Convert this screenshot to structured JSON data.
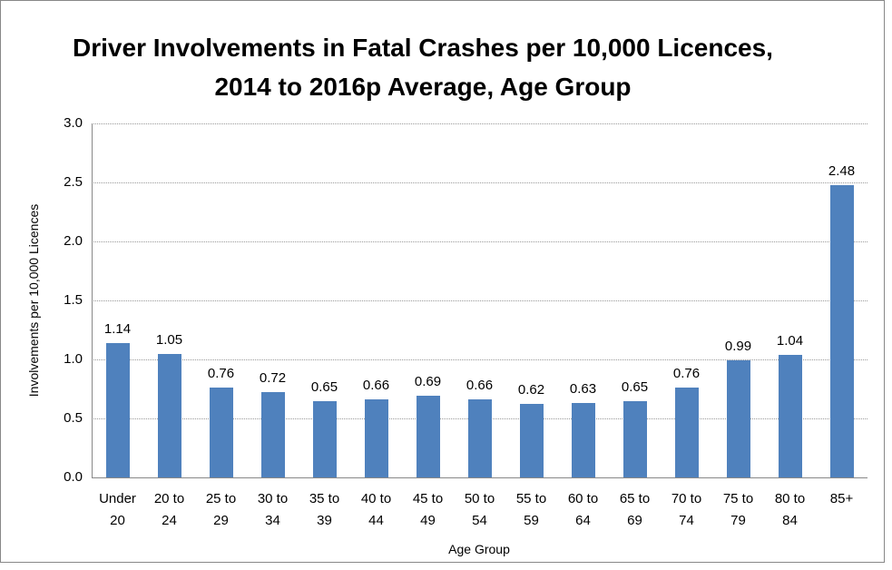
{
  "chart_data": {
    "type": "bar",
    "title": "Driver Involvements in Fatal Crashes per 10,000 Licences, 2014 to 2016p Average, Age Group",
    "x_label": "Age Group",
    "y_label": "Involvements per 10,000 Licences",
    "categories": [
      "Under 20",
      "20 to 24",
      "25 to 29",
      "30 to 34",
      "35 to 39",
      "40 to 44",
      "45 to 49",
      "50 to 54",
      "55 to 59",
      "60 to 64",
      "65 to 69",
      "70 to 74",
      "75 to 79",
      "80 to 84",
      "85+"
    ],
    "values": [
      1.14,
      1.05,
      0.76,
      0.72,
      0.65,
      0.66,
      0.69,
      0.66,
      0.62,
      0.63,
      0.65,
      0.76,
      0.99,
      1.04,
      2.48
    ],
    "color": "#4f81bd",
    "ylim": [
      0,
      3
    ],
    "yticks": [
      {
        "value": 0,
        "label": "0.0"
      },
      0.5,
      {
        "value": 1,
        "label": "1.0"
      },
      1.5,
      {
        "value": 2,
        "label": "2.0"
      },
      2.5,
      {
        "value": 3,
        "label": "3.0"
      }
    ],
    "grid": true
  }
}
